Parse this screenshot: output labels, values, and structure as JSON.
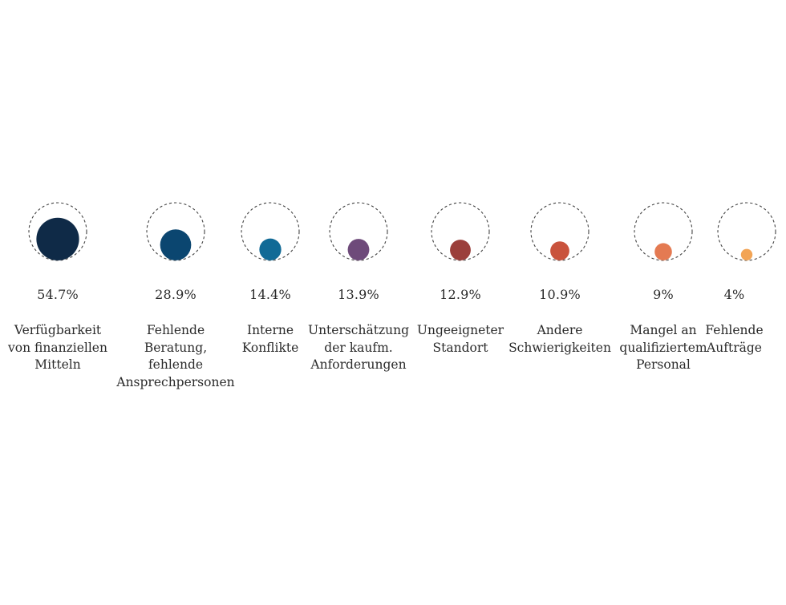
{
  "chart_data": {
    "type": "bubble",
    "title": "",
    "unit": "%",
    "reference_value": 100,
    "series": [
      {
        "values": [
          54.7,
          28.9,
          14.4,
          13.9,
          12.9,
          10.9,
          9,
          4
        ],
        "labels": [
          "54.7%",
          "28.9%",
          "14.4%",
          "13.9%",
          "12.9%",
          "10.9%",
          "9%",
          "4%"
        ]
      }
    ],
    "categories": [
      [
        "Verfügbarkeit",
        "von  finanziellen",
        "Mitteln"
      ],
      [
        "Fehlende",
        "Beratung,",
        "fehlende",
        "Ansprechpersonen"
      ],
      [
        "Interne",
        "Konflikte"
      ],
      [
        "Unterschätzung",
        "der kaufm.",
        "Anforderungen"
      ],
      [
        "Ungeeigneter",
        "Standort"
      ],
      [
        "Andere",
        "Schwierigkeiten"
      ],
      [
        "Mangel an",
        "qualifiziertem",
        "Personal"
      ],
      [
        "Fehlende",
        "Aufträge"
      ]
    ],
    "colors": [
      "#0f2a47",
      "#0b4670",
      "#116a96",
      "#6e4a7a",
      "#9b3f3b",
      "#c9533d",
      "#e47a52",
      "#f2a455"
    ],
    "reference_circle_style": "dashed",
    "reference_circle_color": "#444444"
  }
}
